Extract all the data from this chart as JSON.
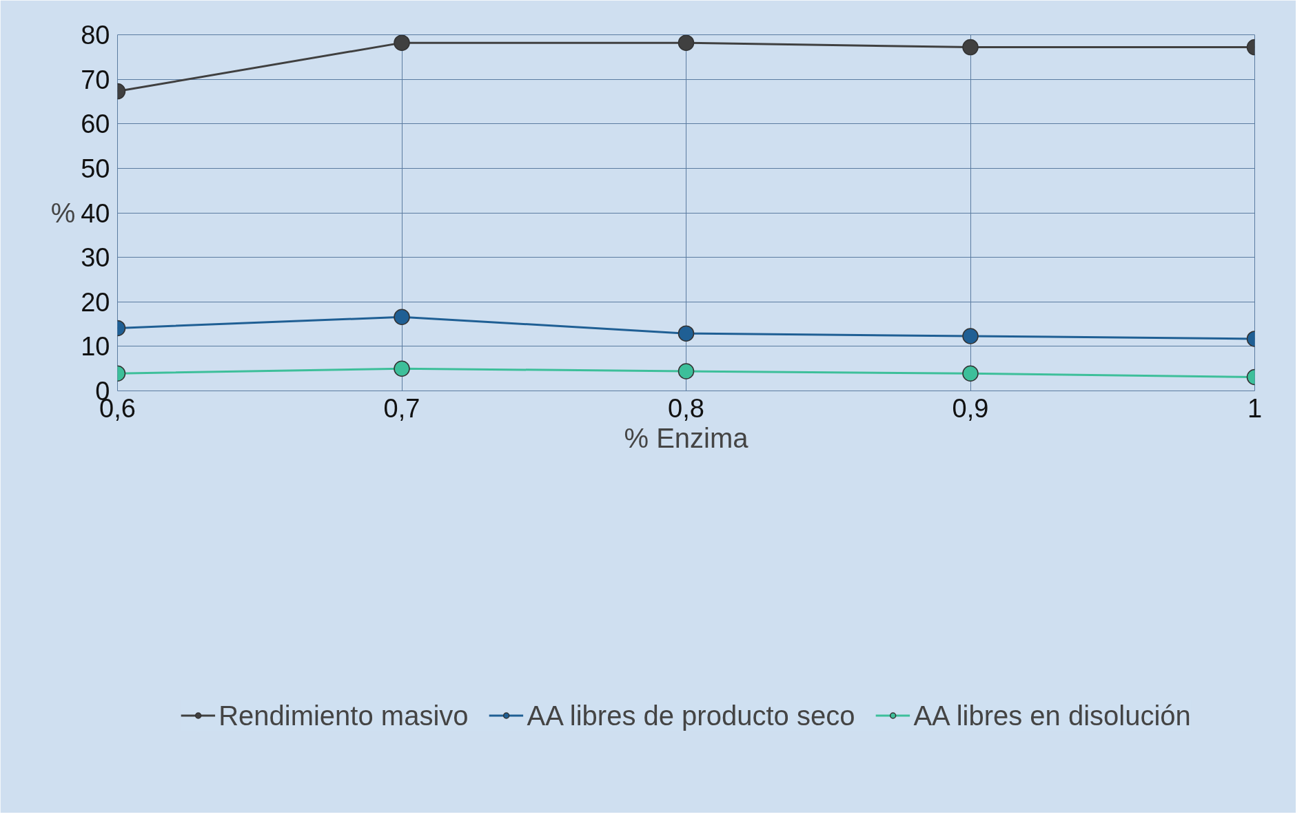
{
  "chart_data": {
    "type": "line",
    "xlabel": "% Enzima",
    "ylabel": "%",
    "x": [
      0.6,
      0.7,
      0.8,
      0.9,
      1.0
    ],
    "series": [
      {
        "name": "Rendimiento masivo",
        "color": "#404040",
        "values": [
          67.3,
          78.2,
          78.2,
          77.2,
          77.2
        ]
      },
      {
        "name": "AA libres de producto seco",
        "color": "#1f5f94",
        "values": [
          14.1,
          16.6,
          12.9,
          12.3,
          11.7
        ]
      },
      {
        "name": "AA libres en disolución",
        "color": "#3dbf9a",
        "values": [
          3.9,
          5.0,
          4.4,
          3.9,
          3.1
        ]
      }
    ],
    "xlim": [
      0.6,
      1.0
    ],
    "ylim": [
      0,
      80
    ],
    "xticks": [
      {
        "value": 0.6,
        "label": "0,6"
      },
      {
        "value": 0.7,
        "label": "0,7"
      },
      {
        "value": 0.8,
        "label": "0,8"
      },
      {
        "value": 0.9,
        "label": "0,9"
      },
      {
        "value": 1.0,
        "label": "1"
      }
    ],
    "yticks": [
      0,
      10,
      20,
      30,
      40,
      50,
      60,
      70,
      80
    ],
    "grid": true,
    "legend": "bottom",
    "marker": "circle",
    "line_style": "solid"
  }
}
